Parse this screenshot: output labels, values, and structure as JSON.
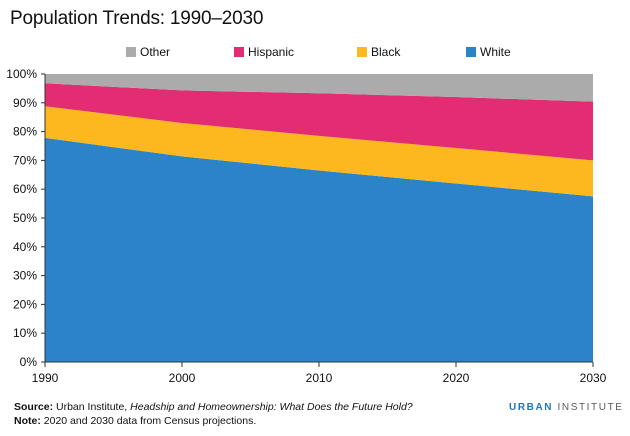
{
  "title": "Population Trends: 1990–2030",
  "chart_data": {
    "type": "area",
    "stacked": true,
    "x": [
      "1990",
      "2000",
      "2010",
      "2020",
      "2030"
    ],
    "ylim": [
      0,
      100
    ],
    "y_ticks": [
      "0%",
      "10%",
      "20%",
      "30%",
      "40%",
      "50%",
      "60%",
      "70%",
      "80%",
      "90%",
      "100%"
    ],
    "legend_position": "top",
    "grid": false,
    "series": [
      {
        "name": "White",
        "values": [
          77.8,
          71.4,
          66.5,
          62.0,
          57.5
        ],
        "color": "#2a84c7"
      },
      {
        "name": "Black",
        "values": [
          11.0,
          11.6,
          12.0,
          12.3,
          12.5
        ],
        "color": "#fcb81e"
      },
      {
        "name": "Hispanic",
        "values": [
          8.0,
          11.3,
          14.8,
          17.7,
          20.4
        ],
        "color": "#e22d72"
      },
      {
        "name": "Other",
        "values": [
          3.2,
          5.7,
          6.7,
          8.0,
          9.6
        ],
        "color": "#ababab"
      }
    ]
  },
  "legend": [
    {
      "label": "Other",
      "color": "#ababab"
    },
    {
      "label": "Hispanic",
      "color": "#e22d72"
    },
    {
      "label": "Black",
      "color": "#fcb81e"
    },
    {
      "label": "White",
      "color": "#2a84c7"
    }
  ],
  "source": {
    "label": "Source:",
    "text_before": " Urban Institute, ",
    "title_italic": "Headship and Homeownership: What Does the Future Hold?"
  },
  "note": {
    "label": "Note:",
    "text": " 2020 and 2030 data from Census projections."
  },
  "brand": {
    "part1": "URBAN",
    "part2": " INSTITUTE"
  }
}
